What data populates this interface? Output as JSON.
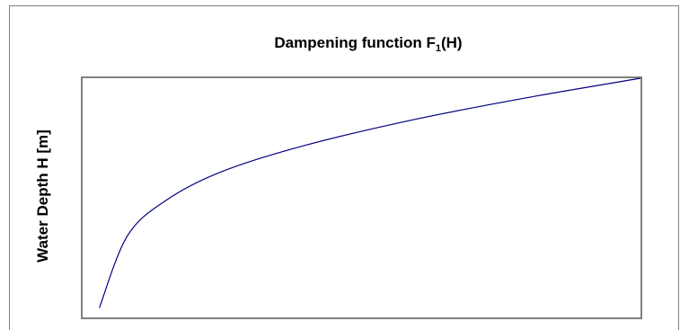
{
  "chart_data": {
    "type": "line",
    "title": {
      "main": "Dampening function F",
      "sub": "1",
      "suffix": "(H)"
    },
    "ylabel": "Water Depth H [m]",
    "xlabel": "",
    "grid": false,
    "legend": "none",
    "series": [
      {
        "color": "#000080",
        "x": [
          0.03,
          0.08,
          0.15,
          0.25,
          0.4,
          0.6,
          0.8,
          1.0
        ],
        "y": [
          0.04,
          0.34,
          0.49,
          0.61,
          0.72,
          0.83,
          0.92,
          1.0
        ]
      }
    ]
  }
}
